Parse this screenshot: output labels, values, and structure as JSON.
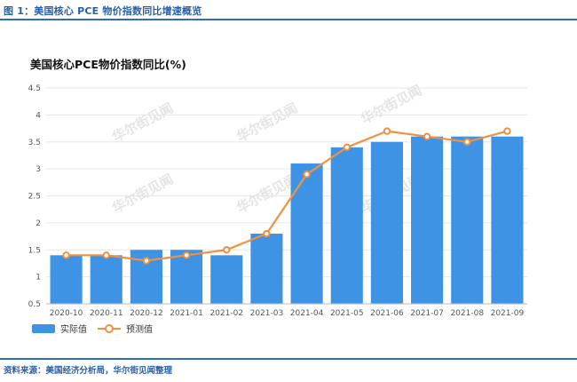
{
  "figure_title": "图 1：美国核心 PCE 物价指数同比增速概览",
  "source": "资料来源：美国经济分析局，华尔街见闻整理",
  "watermark": "华尔街见闻",
  "colors": {
    "bar": "#3f93e4",
    "line": "#f0913f",
    "accent": "#2f6db5",
    "grid": "#e6e6e6"
  },
  "chart_data": {
    "type": "bar",
    "title": "美国核心PCE物价指数同比(%)",
    "xlabel": "",
    "ylabel": "",
    "ylim": [
      0.5,
      4.5
    ],
    "yticks": [
      "0.5",
      "1",
      "1.5",
      "2",
      "2.5",
      "3",
      "3.5",
      "4",
      "4.5"
    ],
    "grid": true,
    "legend_position": "bottom-left",
    "categories": [
      "2020-10",
      "2020-11",
      "2020-12",
      "2021-01",
      "2021-02",
      "2021-03",
      "2021-04",
      "2021-05",
      "2021-06",
      "2021-07",
      "2021-08",
      "2021-09"
    ],
    "series": [
      {
        "name": "实际值",
        "type": "bar",
        "values": [
          1.4,
          1.4,
          1.5,
          1.5,
          1.4,
          1.8,
          3.1,
          3.4,
          3.5,
          3.6,
          3.6,
          3.6
        ]
      },
      {
        "name": "预测值",
        "type": "line",
        "values": [
          1.4,
          1.4,
          1.3,
          1.4,
          1.5,
          1.8,
          2.9,
          3.4,
          3.7,
          3.6,
          3.5,
          3.7
        ]
      }
    ]
  }
}
